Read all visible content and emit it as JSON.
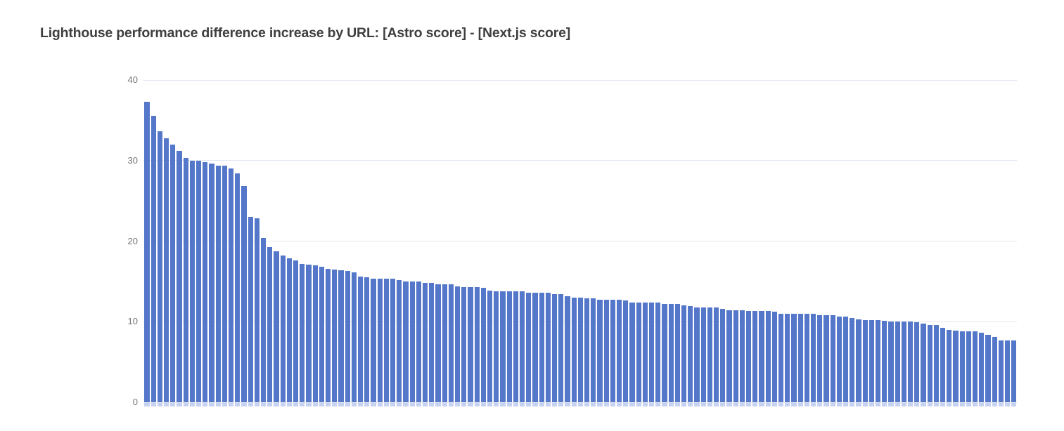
{
  "header": {
    "title": "Lighthouse performance difference increase by URL: [Astro score] - [Next.js score]",
    "title_color": "#3f3f3f"
  },
  "chart_data": {
    "type": "bar",
    "title": "Lighthouse performance difference increase by URL: [Astro score] - [Next.js score]",
    "xlabel": "",
    "ylabel": "",
    "x_tick_labels_visible": false,
    "ylim": [
      0,
      40
    ],
    "yticks": [
      0,
      10,
      20,
      30,
      40
    ],
    "grid": true,
    "legend": "none",
    "colors": {
      "bar": "#5477ca",
      "bar_baseline_stub": "#c7d1f1",
      "gridline": "#e3e7f1",
      "axis_tick_label": "#757575",
      "background": "#ffffff"
    },
    "values": [
      37.3,
      35.6,
      33.6,
      32.8,
      32.0,
      31.2,
      30.3,
      30.0,
      30.0,
      29.8,
      29.6,
      29.4,
      29.4,
      29.0,
      28.4,
      26.8,
      23.0,
      22.8,
      20.4,
      19.3,
      18.7,
      18.2,
      17.9,
      17.6,
      17.2,
      17.1,
      17.0,
      16.8,
      16.6,
      16.5,
      16.4,
      16.3,
      16.1,
      15.6,
      15.5,
      15.3,
      15.3,
      15.3,
      15.3,
      15.2,
      15.0,
      15.0,
      15.0,
      14.8,
      14.8,
      14.6,
      14.6,
      14.6,
      14.4,
      14.3,
      14.3,
      14.3,
      14.2,
      13.9,
      13.8,
      13.8,
      13.8,
      13.8,
      13.8,
      13.6,
      13.6,
      13.6,
      13.6,
      13.4,
      13.4,
      13.2,
      13.0,
      13.0,
      12.9,
      12.9,
      12.7,
      12.7,
      12.7,
      12.7,
      12.6,
      12.4,
      12.4,
      12.4,
      12.4,
      12.4,
      12.2,
      12.2,
      12.2,
      12.0,
      11.9,
      11.8,
      11.8,
      11.8,
      11.8,
      11.6,
      11.4,
      11.4,
      11.4,
      11.3,
      11.3,
      11.3,
      11.3,
      11.2,
      11.0,
      11.0,
      11.0,
      11.0,
      11.0,
      11.0,
      10.8,
      10.8,
      10.8,
      10.6,
      10.6,
      10.5,
      10.3,
      10.2,
      10.2,
      10.2,
      10.1,
      10.0,
      10.0,
      10.0,
      10.0,
      9.9,
      9.8,
      9.6,
      9.6,
      9.2,
      9.0,
      8.9,
      8.8,
      8.8,
      8.8,
      8.6,
      8.4,
      8.1,
      7.7,
      7.7,
      7.7
    ]
  }
}
